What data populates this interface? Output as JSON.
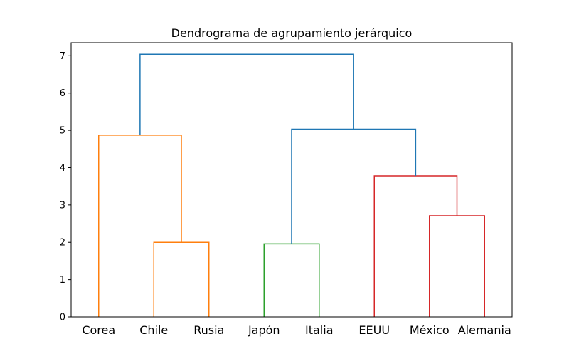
{
  "chart_data": {
    "type": "dendrogram",
    "title": "Dendrograma de agrupamiento jerárquico",
    "xlabel": "",
    "ylabel": "",
    "ylim": [
      0,
      7.35
    ],
    "yticks": [
      0,
      1,
      2,
      3,
      4,
      5,
      6,
      7
    ],
    "grid": false,
    "leaves": [
      "Corea",
      "Chile",
      "Rusia",
      "Japón",
      "Italia",
      "EEUU",
      "México",
      "Alemania"
    ],
    "colors": {
      "orange": "#ff7f0e",
      "green": "#2ca02c",
      "red": "#d62728",
      "blue": "#1f77b4"
    },
    "links": [
      {
        "left": "Chile",
        "right": "Rusia",
        "height": 2.0,
        "color": "orange"
      },
      {
        "left": "Corea",
        "right": "Chile+Rusia",
        "height": 4.87,
        "color": "orange"
      },
      {
        "left": "Japón",
        "right": "Italia",
        "height": 1.96,
        "color": "green"
      },
      {
        "left": "México",
        "right": "Alemania",
        "height": 2.71,
        "color": "red"
      },
      {
        "left": "EEUU",
        "right": "México+Alemania",
        "height": 3.78,
        "color": "red"
      },
      {
        "left": "Japón+Italia",
        "right": "EEUU+México+Alemania",
        "height": 5.03,
        "color": "blue"
      },
      {
        "left": "Corea+Chile+Rusia",
        "right": "Japón+Italia+EEUU+México+Alemania",
        "height": 7.04,
        "color": "blue"
      }
    ]
  }
}
